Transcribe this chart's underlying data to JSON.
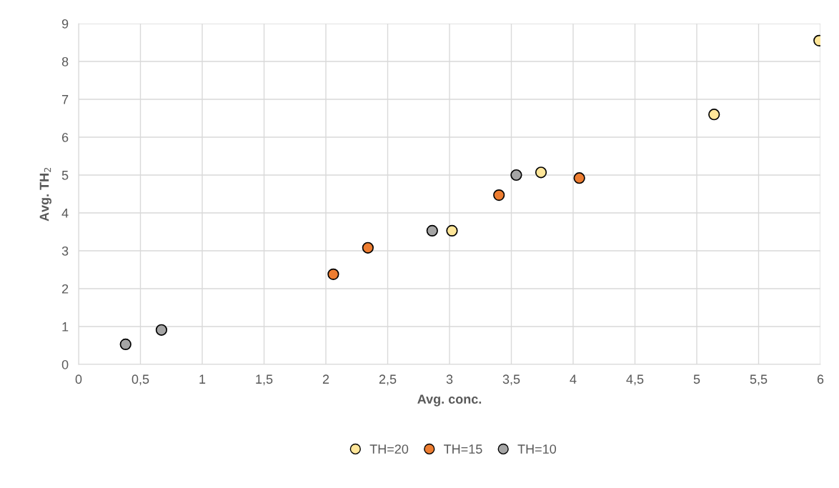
{
  "chart_data": {
    "type": "scatter",
    "xlabel": "Avg. conc.",
    "ylabel": "Avg. TH$_{2}$",
    "series": [
      {
        "name": "TH=20",
        "color": "#ffe699",
        "x": [
          3.02,
          3.74,
          5.14,
          5.99
        ],
        "values": [
          3.53,
          5.07,
          6.6,
          8.55
        ]
      },
      {
        "name": "TH=15",
        "color": "#ed7d31",
        "x": [
          2.06,
          2.34,
          3.4,
          4.05
        ],
        "values": [
          2.38,
          3.08,
          4.47,
          4.92
        ]
      },
      {
        "name": "TH=10",
        "color": "#a5a5a5",
        "x": [
          0.38,
          0.67,
          2.86,
          3.54
        ],
        "values": [
          0.53,
          0.91,
          3.53,
          5.0
        ]
      }
    ],
    "xlim": [
      0,
      6
    ],
    "ylim": [
      0,
      9
    ],
    "xticks": [
      0,
      {
        "value": 0.5,
        "label": "0,5"
      },
      1,
      {
        "value": 1.5,
        "label": "1,5"
      },
      2,
      {
        "value": 2.5,
        "label": "2,5"
      },
      3,
      {
        "value": 3.5,
        "label": "3,5"
      },
      4,
      {
        "value": 4.5,
        "label": "4,5"
      },
      5,
      {
        "value": 5.5,
        "label": "5,5"
      },
      6
    ],
    "yticks": [
      0,
      1,
      2,
      3,
      4,
      5,
      6,
      7,
      8,
      9
    ],
    "grid": true,
    "legend": "bottom",
    "marker": "circle"
  }
}
